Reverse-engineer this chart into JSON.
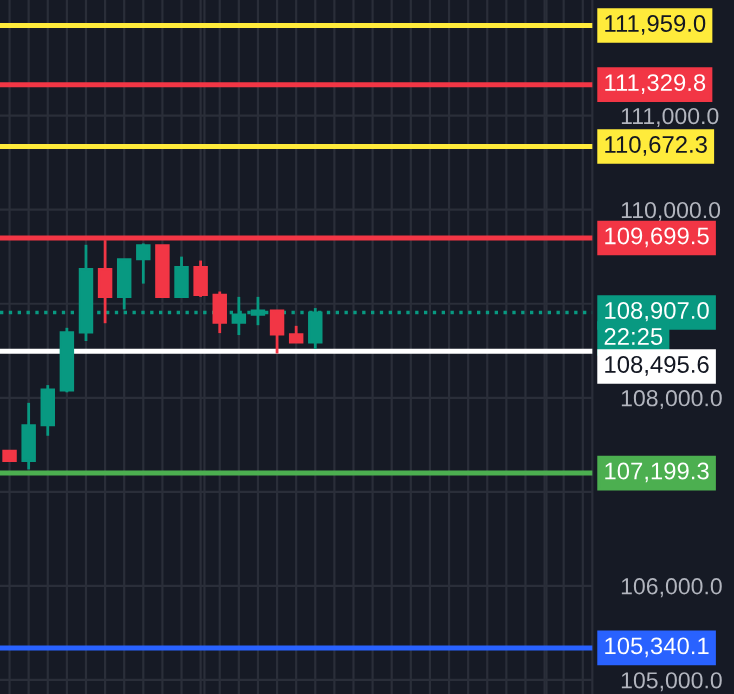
{
  "chart_data": {
    "type": "candlestick",
    "categories": [
      null,
      null,
      null,
      null,
      null,
      null,
      null,
      null,
      null,
      null,
      null,
      null,
      null,
      null,
      null,
      null,
      null,
      null,
      null,
      null,
      null,
      null,
      null,
      null,
      null,
      null,
      null,
      null,
      null,
      null,
      null
    ],
    "ohlc": [
      [
        107435,
        107435,
        107330,
        107330
      ],
      [
        107330,
        107946,
        107238,
        107708
      ],
      [
        107708,
        108135,
        107596,
        108086
      ],
      [
        108079,
        108744,
        108058,
        108695
      ],
      [
        108695,
        109627,
        108604,
        109368
      ],
      [
        109368,
        109676,
        108793,
        109073
      ],
      [
        109073,
        109473,
        108940,
        109473
      ],
      [
        109473,
        109641,
        109214,
        109620
      ],
      [
        109620,
        109620,
        109073,
        109073
      ],
      [
        109073,
        109501,
        109073,
        109389
      ],
      [
        109389,
        109459,
        109073,
        109095
      ],
      [
        109095,
        109130,
        108688,
        108800
      ],
      [
        108800,
        109073,
        108667,
        108884
      ],
      [
        108884,
        109073,
        108772,
        108926
      ],
      [
        108926,
        108926,
        108471,
        108674
      ],
      [
        108674,
        108765,
        108590,
        108590
      ],
      [
        108590,
        108954,
        108520,
        108907
      ],
      null,
      null,
      null,
      null,
      null,
      null,
      null,
      null,
      null,
      null,
      null,
      null,
      null,
      null
    ],
    "colors": [
      "#f23645",
      "#089981",
      "#089981",
      "#089981",
      "#089981",
      "#f23645",
      "#089981",
      "#089981",
      "#f23645",
      "#089981",
      "#f23645",
      "#f23645",
      "#089981",
      "#089981",
      "#f23645",
      "#f23645",
      "#089981",
      null,
      null,
      null,
      null,
      null,
      null,
      null,
      null,
      null,
      null,
      null,
      null,
      null,
      null
    ],
    "ylim": [
      104850,
      112230
    ],
    "yticks": [
      {
        "value": 105000,
        "label": "105,000.0"
      },
      {
        "value": 106000,
        "label": "106,000.0"
      },
      {
        "value": 107000,
        "label": null
      },
      {
        "value": 108000,
        "label": "108,000.0"
      },
      {
        "value": 109000,
        "label": null
      },
      {
        "value": 110000,
        "label": "110,000.0"
      },
      {
        "value": 111000,
        "label": "111,000.0"
      }
    ],
    "grid": true,
    "ref_lines": [
      {
        "axis": "y",
        "value": 111959.0,
        "label": "111,959.0",
        "color": "#ffeb3b"
      },
      {
        "axis": "y",
        "value": 111329.8,
        "label": "111,329.8",
        "color": "#f23645"
      },
      {
        "axis": "y",
        "value": 110672.3,
        "label": "110,672.3",
        "color": "#ffeb3b"
      },
      {
        "axis": "y",
        "value": 109699.5,
        "label": "109,699.5",
        "color": "#f23645"
      },
      {
        "axis": "y",
        "value": 108907.0,
        "label": "108,907.0",
        "color": "#089981",
        "line_style": "dotted"
      },
      {
        "axis": "y",
        "value": 108495.6,
        "label": "108,495.6",
        "color": "#ffffff"
      },
      {
        "axis": "y",
        "value": 107199.3,
        "label": "107,199.3",
        "color": "#4caf50"
      },
      {
        "axis": "y",
        "value": 105340.1,
        "label": "105,340.1",
        "color": "#2962ff"
      }
    ],
    "annotations": [
      "22:25"
    ]
  }
}
